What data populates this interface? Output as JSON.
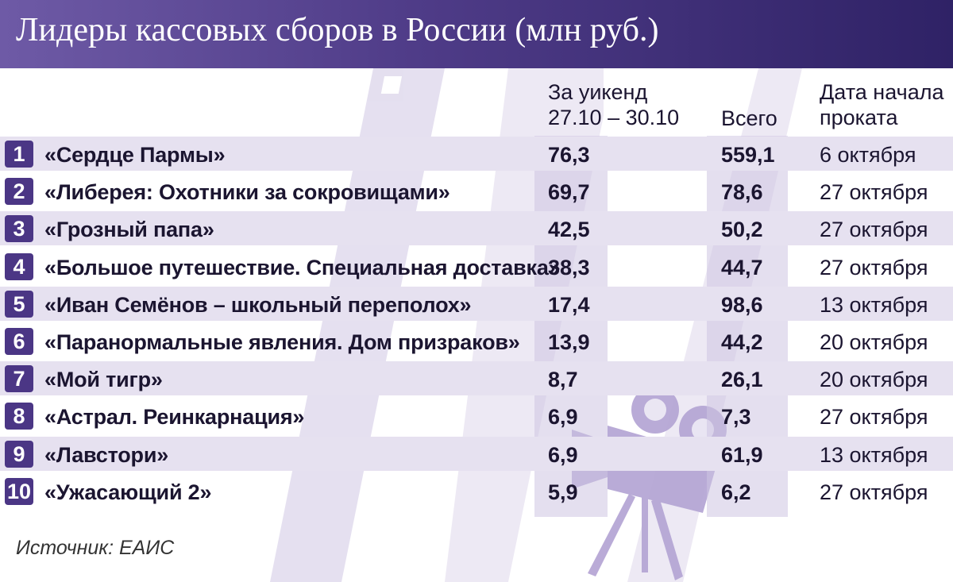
{
  "title": "Лидеры кассовых сборов в России (млн руб.)",
  "source": "Источник: ЕАИС",
  "colors": {
    "header_dark": "#2f2266",
    "header_light": "#6e5aa6",
    "rank_badge": "#4b3685",
    "row_band": "#e6e1f0",
    "decor": "#d8d1e8"
  },
  "icons": [
    "film-strip-icon",
    "movie-projector-icon"
  ],
  "chart_data": {
    "type": "table",
    "columns": [
      {
        "key": "rank",
        "label": ""
      },
      {
        "key": "film",
        "label": ""
      },
      {
        "key": "weekend",
        "label_line1": "За уикенд",
        "label_line2": "27.10 – 30.10"
      },
      {
        "key": "total",
        "label": "Всего"
      },
      {
        "key": "release",
        "label_line1": "Дата начала",
        "label_line2": "проката"
      }
    ],
    "rows": [
      {
        "rank": "1",
        "film": "«Сердце Пармы»",
        "weekend": "76,3",
        "total": "559,1",
        "release": "6 октября"
      },
      {
        "rank": "2",
        "film": "«Либерея: Охотники за сокровищами»",
        "weekend": "69,7",
        "total": "78,6",
        "release": "27 октября"
      },
      {
        "rank": "3",
        "film": "«Грозный папа»",
        "weekend": "42,5",
        "total": "50,2",
        "release": "27 октября"
      },
      {
        "rank": "4",
        "film": "«Большое путешествие. Специальная доставка»",
        "weekend": "38,3",
        "total": "44,7",
        "release": "27 октября"
      },
      {
        "rank": "5",
        "film": "«Иван Семёнов – школьный переполох»",
        "weekend": "17,4",
        "total": "98,6",
        "release": "13 октября"
      },
      {
        "rank": "6",
        "film": "«Паранормальные явления. Дом призраков»",
        "weekend": "13,9",
        "total": "44,2",
        "release": "20 октября"
      },
      {
        "rank": "7",
        "film": "«Мой тигр»",
        "weekend": "8,7",
        "total": "26,1",
        "release": "20 октября"
      },
      {
        "rank": "8",
        "film": "«Астрал. Реинкарнация»",
        "weekend": "6,9",
        "total": "7,3",
        "release": "27 октября"
      },
      {
        "rank": "9",
        "film": "«Лавстори»",
        "weekend": "6,9",
        "total": "61,9",
        "release": "13 октября"
      },
      {
        "rank": "10",
        "film": "«Ужасающий 2»",
        "weekend": "5,9",
        "total": "6,2",
        "release": "27 октября"
      }
    ]
  }
}
